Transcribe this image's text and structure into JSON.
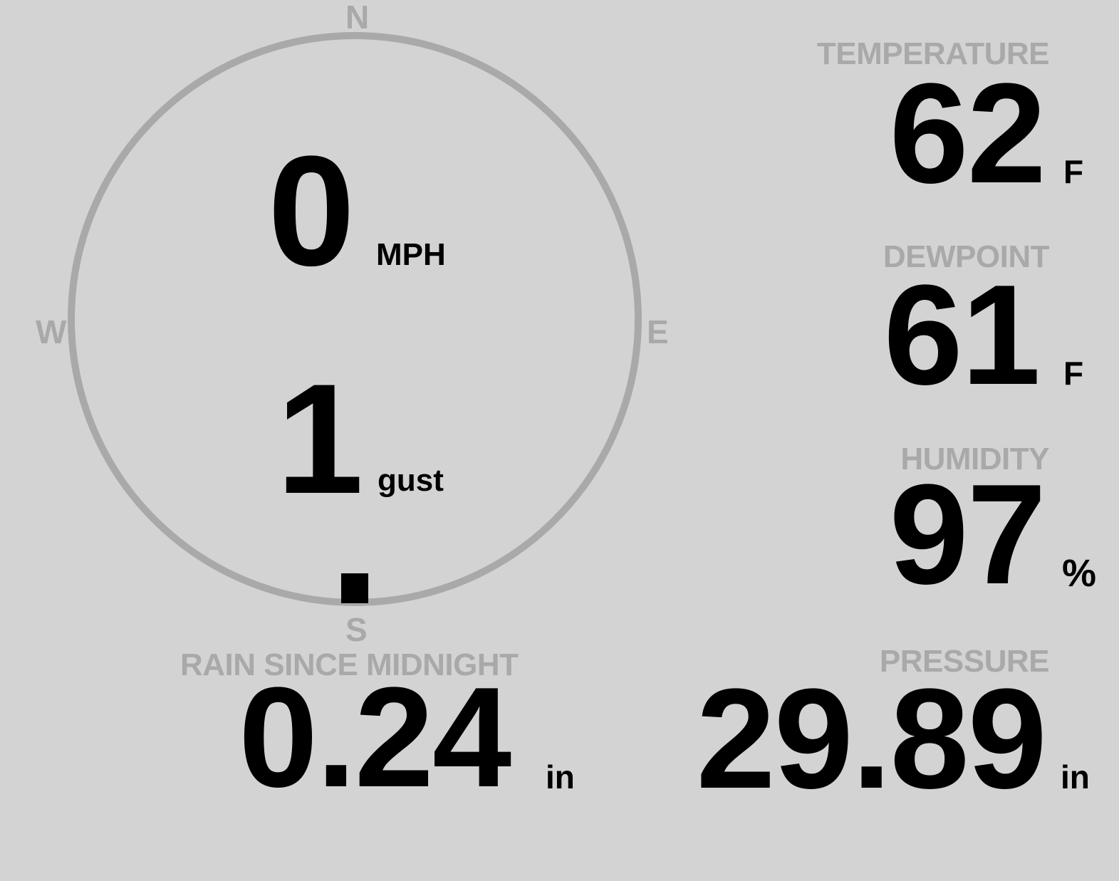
{
  "colors": {
    "background": "#d3d3d3",
    "label": "#a9a9a9",
    "value": "#000000"
  },
  "wind": {
    "compass": {
      "north": "N",
      "south": "S",
      "east": "E",
      "west": "W"
    },
    "direction_degrees": 180,
    "speed": "0",
    "speed_unit": "MPH",
    "gust": "1",
    "gust_unit": "gust"
  },
  "temperature": {
    "label": "TEMPERATURE",
    "value": "62",
    "unit": "F"
  },
  "dewpoint": {
    "label": "DEWPOINT",
    "value": "61",
    "unit": "F"
  },
  "humidity": {
    "label": "HUMIDITY",
    "value": "97",
    "unit": "%"
  },
  "pressure": {
    "label": "PRESSURE",
    "value": "29.89",
    "unit": "in"
  },
  "rain": {
    "label": "RAIN SINCE MIDNIGHT",
    "value": "0.24",
    "unit": "in"
  }
}
